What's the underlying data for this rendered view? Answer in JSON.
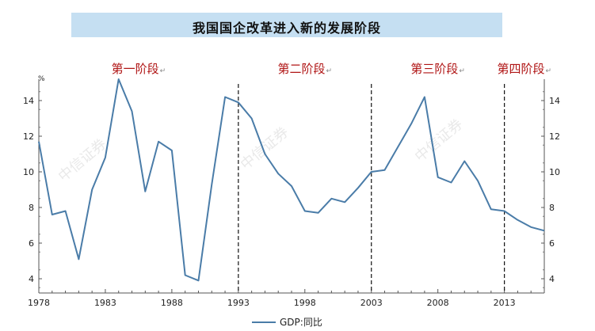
{
  "title": "我国国企改革进入新的发展阶段",
  "stage_mark": "↵",
  "watermark": "中信证券",
  "chart_data": {
    "type": "line",
    "title": "我国国企改革进入新的发展阶段",
    "unit": "%",
    "xlabel": "",
    "ylabel": "",
    "xlim": [
      1978,
      2016
    ],
    "ylim": [
      3.2,
      15.2
    ],
    "x_ticks": [
      1978,
      1983,
      1988,
      1993,
      1998,
      2003,
      2008,
      2013
    ],
    "y_ticks": [
      4,
      6,
      8,
      10,
      12,
      14
    ],
    "grid": false,
    "legend_position": "bottom",
    "color": "#4a7ca8",
    "series": [
      {
        "name": "GDP:同比",
        "x": [
          1978,
          1979,
          1980,
          1981,
          1982,
          1983,
          1984,
          1985,
          1986,
          1987,
          1988,
          1989,
          1990,
          1991,
          1992,
          1993,
          1994,
          1995,
          1996,
          1997,
          1998,
          1999,
          2000,
          2001,
          2002,
          2003,
          2004,
          2005,
          2006,
          2007,
          2008,
          2009,
          2010,
          2011,
          2012,
          2013,
          2014,
          2015,
          2016
        ],
        "values": [
          11.7,
          7.6,
          7.8,
          5.1,
          9.0,
          10.8,
          15.2,
          13.4,
          8.9,
          11.7,
          11.2,
          4.2,
          3.9,
          9.3,
          14.2,
          13.9,
          13.0,
          11.0,
          9.9,
          9.2,
          7.8,
          7.7,
          8.5,
          8.3,
          9.1,
          10.0,
          10.1,
          11.4,
          12.7,
          14.2,
          9.7,
          9.4,
          10.6,
          9.5,
          7.9,
          7.8,
          7.3,
          6.9,
          6.7
        ]
      }
    ],
    "stage_dividers": [
      1993,
      2003,
      2013
    ],
    "stages": [
      {
        "label": "第一阶段",
        "x_center": 1985.5
      },
      {
        "label": "第二阶段",
        "x_center": 1998
      },
      {
        "label": "第三阶段",
        "x_center": 2008
      },
      {
        "label": "第四阶段",
        "x_center": 2014.5
      }
    ]
  }
}
